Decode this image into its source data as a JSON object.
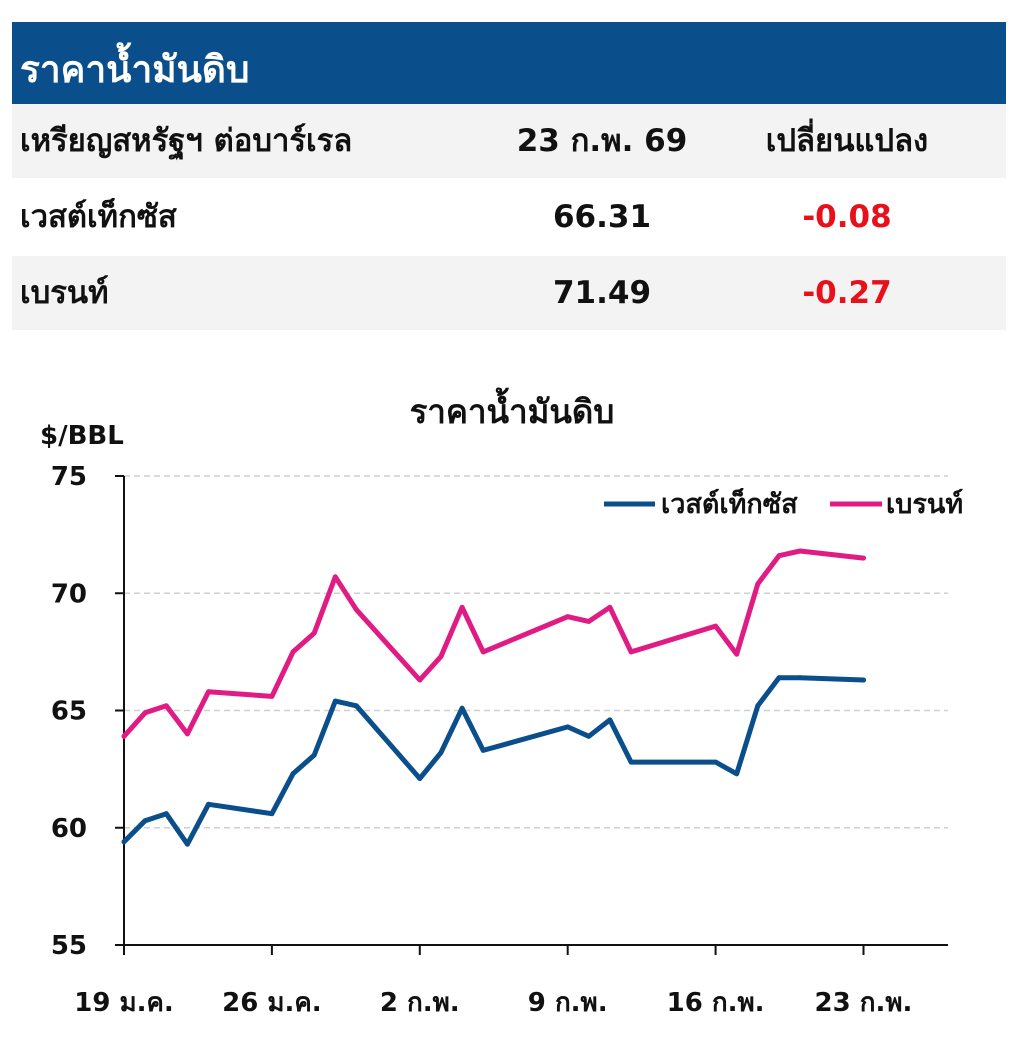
{
  "table": {
    "title": "ราคาน้ำมันดิบ",
    "headers": [
      "เหรียญสหรัฐฯ ต่อบาร์เรล",
      "23 ก.พ. 69",
      "เปลี่ยนแปลง"
    ],
    "rows": [
      {
        "name": "เวสต์เท็กซัส",
        "price": "66.31",
        "change": "-0.08"
      },
      {
        "name": "เบรนท์",
        "price": "71.49",
        "change": "-0.27"
      }
    ],
    "negative_color": "#e8101a",
    "header_color": "#0a4f8c"
  },
  "chart_data": {
    "type": "line",
    "title": "ราคาน้ำมันดิบ",
    "ylabel": "$/BBL",
    "ylim": [
      55,
      75
    ],
    "yticks": [
      55,
      60,
      65,
      70,
      75
    ],
    "grid": true,
    "legend_position": "top-right",
    "x_tick_labels": [
      {
        "label": "19 ม.ค.",
        "day": 0
      },
      {
        "label": "26 ม.ค.",
        "day": 7
      },
      {
        "label": "2 ก.พ.",
        "day": 14
      },
      {
        "label": "9 ก.พ.",
        "day": 21
      },
      {
        "label": "16 ก.พ.",
        "day": 28
      },
      {
        "label": "23 ก.พ.",
        "day": 35
      }
    ],
    "x_range_days": [
      0,
      39
    ],
    "x_days": [
      0,
      1,
      2,
      3,
      4,
      7,
      8,
      9,
      10,
      11,
      14,
      15,
      16,
      17,
      21,
      22,
      23,
      24,
      28,
      29,
      30,
      31,
      32,
      35
    ],
    "series": [
      {
        "name": "เวสต์เท็กซัส",
        "color": "#0a4f8c",
        "values": [
          59.4,
          60.3,
          60.6,
          59.3,
          61.0,
          60.6,
          62.3,
          63.1,
          65.4,
          65.2,
          62.1,
          63.2,
          65.1,
          63.3,
          64.3,
          63.9,
          64.6,
          62.8,
          62.8,
          62.3,
          65.2,
          66.4,
          66.4,
          66.3
        ]
      },
      {
        "name": "เบรนท์",
        "color": "#e01b84",
        "values": [
          63.9,
          64.9,
          65.2,
          64.0,
          65.8,
          65.6,
          67.5,
          68.3,
          70.7,
          69.3,
          66.3,
          67.3,
          69.4,
          67.5,
          69.0,
          68.8,
          69.4,
          67.5,
          68.6,
          67.4,
          70.4,
          71.6,
          71.8,
          71.5
        ]
      }
    ]
  }
}
